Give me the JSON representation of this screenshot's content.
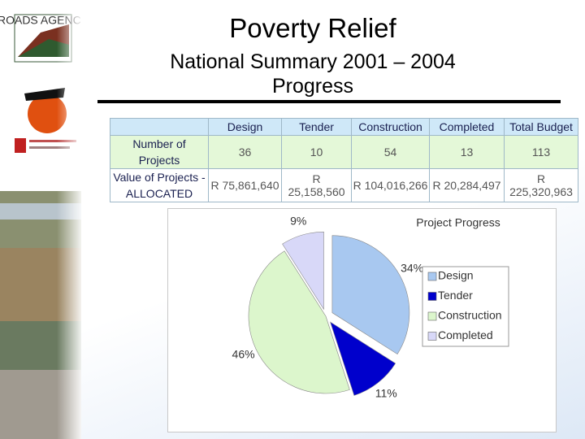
{
  "logo": {
    "text": "ROADS AGENCY"
  },
  "title": "Poverty Relief",
  "subtitle": [
    "National Summary 2001 – 2004",
    "Progress"
  ],
  "table": {
    "header": [
      "",
      "Design",
      "Tender",
      "Construction",
      "Completed",
      "Total Budget"
    ],
    "rows": [
      [
        "Number of Projects",
        36,
        10,
        54,
        13,
        113
      ],
      [
        "Value of Projects - ALLOCATED",
        "R 75,861,640",
        "R 25,158,560",
        "R 104,016,266",
        "R 20,284,497",
        "R 225,320,963"
      ]
    ]
  },
  "chart_data": {
    "type": "pie",
    "title": "Project Progress",
    "categories": [
      "Design",
      "Tender",
      "Construction",
      "Completed"
    ],
    "values": [
      34,
      11,
      46,
      9
    ],
    "value_labels": [
      "34%",
      "11%",
      "46%",
      "9%"
    ],
    "colors": [
      "#a8c8f0",
      "#0000cc",
      "#dcf6cc",
      "#d8d8f8"
    ],
    "legend": "right"
  }
}
